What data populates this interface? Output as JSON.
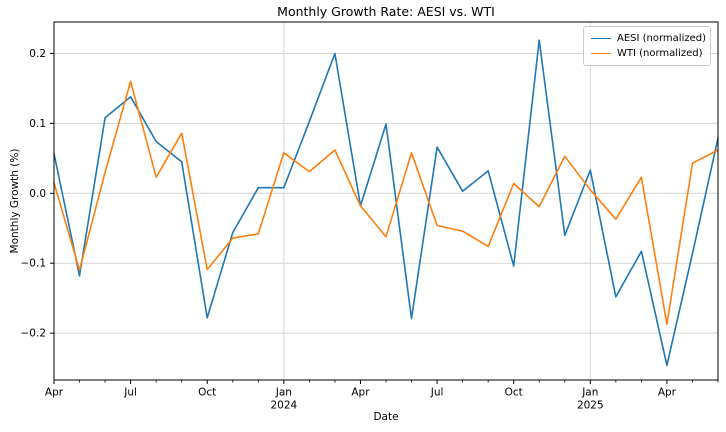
{
  "chart_data": {
    "type": "line",
    "title": "Monthly Growth Rate: AESI vs. WTI",
    "xlabel": "Date",
    "ylabel": "Monthly Growth (%)",
    "ylim": [
      -0.267,
      0.245
    ],
    "grid": "on",
    "legend_position": "upper right",
    "x": [
      "2023-04",
      "2023-05",
      "2023-06",
      "2023-07",
      "2023-08",
      "2023-09",
      "2023-10",
      "2023-11",
      "2023-12",
      "2024-01",
      "2024-02",
      "2024-03",
      "2024-04",
      "2024-05",
      "2024-06",
      "2024-07",
      "2024-08",
      "2024-09",
      "2024-10",
      "2024-11",
      "2024-12",
      "2025-01",
      "2025-02",
      "2025-03",
      "2025-04",
      "2025-05",
      "2025-06"
    ],
    "series": [
      {
        "name": "AESI (normalized)",
        "color": "#1f77b4",
        "values": [
          0.057,
          -0.118,
          0.108,
          0.138,
          0.074,
          0.045,
          -0.178,
          -0.056,
          0.008,
          0.008,
          0.103,
          0.2,
          -0.018,
          0.099,
          -0.179,
          0.066,
          0.003,
          0.032,
          -0.104,
          0.219,
          -0.06,
          0.033,
          -0.148,
          -0.083,
          -0.246,
          -0.086,
          0.079
        ]
      },
      {
        "name": "WTI (normalized)",
        "color": "#ff7f0e",
        "values": [
          0.015,
          -0.11,
          0.03,
          0.16,
          0.023,
          0.086,
          -0.109,
          -0.064,
          -0.058,
          0.058,
          0.031,
          0.062,
          -0.018,
          -0.062,
          0.058,
          -0.046,
          -0.054,
          -0.076,
          0.014,
          -0.019,
          0.053,
          0.005,
          -0.037,
          0.023,
          -0.187,
          0.043,
          0.062
        ]
      }
    ],
    "x_ticks": [
      {
        "index": 0,
        "label": "Apr"
      },
      {
        "index": 3,
        "label": "Jul"
      },
      {
        "index": 6,
        "label": "Oct"
      },
      {
        "index": 9,
        "label": "Jan",
        "year": "2024",
        "grid": true
      },
      {
        "index": 12,
        "label": "Apr"
      },
      {
        "index": 15,
        "label": "Jul"
      },
      {
        "index": 18,
        "label": "Oct"
      },
      {
        "index": 21,
        "label": "Jan",
        "year": "2025",
        "grid": true
      },
      {
        "index": 24,
        "label": "Apr"
      }
    ],
    "y_ticks": [
      {
        "value": 0.2,
        "label": "0.2"
      },
      {
        "value": 0.1,
        "label": "0.1"
      },
      {
        "value": 0.0,
        "label": "0.0"
      },
      {
        "value": -0.1,
        "label": "−0.1"
      },
      {
        "value": -0.2,
        "label": "−0.2"
      }
    ],
    "colors": {
      "aesi_line": "#1f77b4",
      "wti_line": "#ff7f0e",
      "grid_line": "#d4d4d4",
      "spine": "#000000",
      "text": "#000000"
    }
  }
}
